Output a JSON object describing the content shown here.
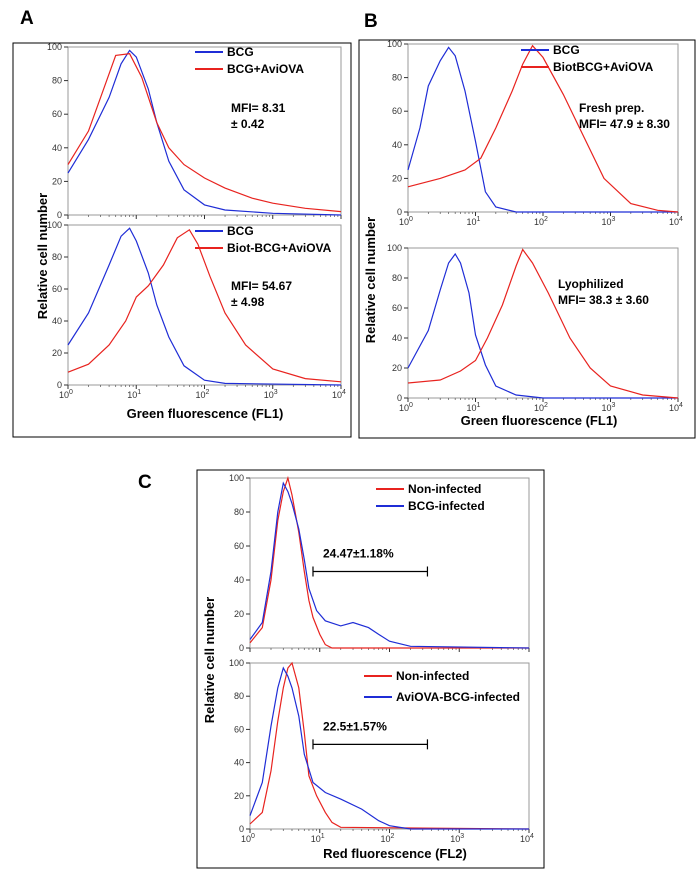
{
  "colors": {
    "blue": "#1f2dd6",
    "red": "#e8231f",
    "frame": "#000000"
  },
  "panels": [
    {
      "letter": "A",
      "xlabel": "Green fluorescence (FL1)",
      "ylabel": "Relative cell number"
    },
    {
      "letter": "B",
      "xlabel": "Green fluorescence (FL1)",
      "ylabel": "Relative cell number"
    },
    {
      "letter": "C",
      "xlabel": "Red fluorescence (FL2)",
      "ylabel": "Relative cell number"
    }
  ],
  "chart_data": [
    {
      "type": "line",
      "panel": "A",
      "subplot": "top",
      "xscale": "log",
      "xlim": [
        1,
        10000
      ],
      "ylim": [
        0,
        100
      ],
      "x_ticks": [
        "10^0",
        "10^1",
        "10^2",
        "10^3",
        "10^4"
      ],
      "y_ticks": [
        0,
        20,
        40,
        60,
        80,
        100
      ],
      "annotation": [
        "MFI= 8.31",
        "± 0.42"
      ],
      "series": [
        {
          "name": "BCG",
          "color": "blue",
          "points": [
            [
              1,
              25
            ],
            [
              2,
              45
            ],
            [
              4,
              70
            ],
            [
              6,
              90
            ],
            [
              8,
              98
            ],
            [
              10,
              94
            ],
            [
              15,
              75
            ],
            [
              20,
              55
            ],
            [
              30,
              32
            ],
            [
              50,
              15
            ],
            [
              100,
              6
            ],
            [
              200,
              3
            ],
            [
              1000,
              1
            ],
            [
              10000,
              0
            ]
          ]
        },
        {
          "name": "BCG+AviOVA",
          "color": "red",
          "points": [
            [
              1,
              30
            ],
            [
              2,
              50
            ],
            [
              3,
              70
            ],
            [
              5,
              95
            ],
            [
              8,
              96
            ],
            [
              12,
              82
            ],
            [
              20,
              55
            ],
            [
              30,
              40
            ],
            [
              50,
              30
            ],
            [
              100,
              22
            ],
            [
              200,
              16
            ],
            [
              500,
              10
            ],
            [
              1000,
              7
            ],
            [
              3000,
              4
            ],
            [
              10000,
              2
            ]
          ]
        }
      ]
    },
    {
      "type": "line",
      "panel": "A",
      "subplot": "bottom",
      "xscale": "log",
      "xlim": [
        1,
        10000
      ],
      "ylim": [
        0,
        100
      ],
      "x_ticks": [
        "10^0",
        "10^1",
        "10^2",
        "10^3",
        "10^4"
      ],
      "y_ticks": [
        0,
        20,
        40,
        60,
        80,
        100
      ],
      "annotation": [
        "MFI= 54.67",
        "± 4.98"
      ],
      "series": [
        {
          "name": "BCG",
          "color": "blue",
          "points": [
            [
              1,
              25
            ],
            [
              2,
              45
            ],
            [
              4,
              75
            ],
            [
              6,
              93
            ],
            [
              8,
              98
            ],
            [
              10,
              90
            ],
            [
              15,
              70
            ],
            [
              20,
              50
            ],
            [
              30,
              30
            ],
            [
              50,
              12
            ],
            [
              100,
              3
            ],
            [
              200,
              1
            ],
            [
              10000,
              0
            ]
          ]
        },
        {
          "name": "Biot-BCG+AviOVA",
          "color": "red",
          "points": [
            [
              1,
              8
            ],
            [
              2,
              13
            ],
            [
              4,
              25
            ],
            [
              7,
              40
            ],
            [
              10,
              55
            ],
            [
              15,
              62
            ],
            [
              25,
              75
            ],
            [
              40,
              92
            ],
            [
              60,
              97
            ],
            [
              80,
              88
            ],
            [
              120,
              68
            ],
            [
              200,
              45
            ],
            [
              400,
              25
            ],
            [
              1000,
              10
            ],
            [
              3000,
              4
            ],
            [
              10000,
              2
            ]
          ]
        }
      ]
    },
    {
      "type": "line",
      "panel": "B",
      "subplot": "top",
      "xscale": "log",
      "xlim": [
        1,
        10000
      ],
      "ylim": [
        0,
        100
      ],
      "x_ticks": [
        "10^0",
        "10^1",
        "10^2",
        "10^3",
        "10^4"
      ],
      "y_ticks": [
        0,
        20,
        40,
        60,
        80,
        100
      ],
      "annotation": [
        "Fresh prep.",
        "MFI= 47.9 ± 8.30"
      ],
      "series": [
        {
          "name": "BCG",
          "color": "blue",
          "points": [
            [
              1,
              25
            ],
            [
              1.5,
              50
            ],
            [
              2,
              75
            ],
            [
              3,
              90
            ],
            [
              4,
              98
            ],
            [
              5,
              93
            ],
            [
              7,
              72
            ],
            [
              10,
              42
            ],
            [
              14,
              12
            ],
            [
              20,
              3
            ],
            [
              40,
              0
            ],
            [
              10000,
              0
            ]
          ]
        },
        {
          "name": "BiotBCG+AviOVA",
          "color": "red",
          "points": [
            [
              1,
              15
            ],
            [
              3,
              20
            ],
            [
              7,
              25
            ],
            [
              12,
              32
            ],
            [
              20,
              50
            ],
            [
              35,
              72
            ],
            [
              50,
              88
            ],
            [
              70,
              99
            ],
            [
              100,
              92
            ],
            [
              200,
              70
            ],
            [
              400,
              45
            ],
            [
              800,
              20
            ],
            [
              2000,
              5
            ],
            [
              5000,
              1
            ],
            [
              10000,
              0
            ]
          ]
        }
      ]
    },
    {
      "type": "line",
      "panel": "B",
      "subplot": "bottom",
      "xscale": "log",
      "xlim": [
        1,
        10000
      ],
      "ylim": [
        0,
        100
      ],
      "x_ticks": [
        "10^0",
        "10^1",
        "10^2",
        "10^3",
        "10^4"
      ],
      "y_ticks": [
        0,
        20,
        40,
        60,
        80,
        100
      ],
      "annotation": [
        "Lyophilized",
        "MFI= 38.3 ± 3.60"
      ],
      "series": [
        {
          "name": "BCG",
          "color": "blue",
          "points": [
            [
              1,
              20
            ],
            [
              2,
              45
            ],
            [
              3,
              72
            ],
            [
              4,
              90
            ],
            [
              5,
              96
            ],
            [
              6,
              90
            ],
            [
              8,
              70
            ],
            [
              10,
              42
            ],
            [
              14,
              22
            ],
            [
              20,
              8
            ],
            [
              40,
              2
            ],
            [
              100,
              0
            ],
            [
              10000,
              0
            ]
          ]
        },
        {
          "name": "BiotBCG+AviOVA",
          "color": "red",
          "points": [
            [
              1,
              10
            ],
            [
              3,
              12
            ],
            [
              6,
              18
            ],
            [
              10,
              25
            ],
            [
              15,
              40
            ],
            [
              25,
              62
            ],
            [
              40,
              88
            ],
            [
              50,
              99
            ],
            [
              70,
              90
            ],
            [
              120,
              70
            ],
            [
              250,
              40
            ],
            [
              500,
              20
            ],
            [
              1000,
              8
            ],
            [
              3000,
              2
            ],
            [
              10000,
              0
            ]
          ]
        }
      ]
    },
    {
      "type": "line",
      "panel": "C",
      "subplot": "top",
      "xscale": "log",
      "xlim": [
        1,
        10000
      ],
      "ylim": [
        0,
        100
      ],
      "x_ticks": [
        "10^0",
        "10^1",
        "10^2",
        "10^3",
        "10^4"
      ],
      "y_ticks": [
        0,
        20,
        40,
        60,
        80,
        100
      ],
      "gate": {
        "from": 8,
        "to": 350,
        "label": "24.47±1.18%"
      },
      "series": [
        {
          "name": "Non-infected",
          "color": "red",
          "points": [
            [
              1,
              3
            ],
            [
              1.5,
              12
            ],
            [
              2,
              40
            ],
            [
              2.5,
              75
            ],
            [
              3,
              92
            ],
            [
              3.5,
              100
            ],
            [
              4,
              90
            ],
            [
              5,
              68
            ],
            [
              6,
              45
            ],
            [
              7,
              28
            ],
            [
              8,
              18
            ],
            [
              10,
              8
            ],
            [
              12,
              2
            ],
            [
              15,
              0
            ],
            [
              10000,
              0
            ]
          ]
        },
        {
          "name": "BCG-infected",
          "color": "blue",
          "points": [
            [
              1,
              5
            ],
            [
              1.5,
              15
            ],
            [
              2,
              45
            ],
            [
              2.5,
              80
            ],
            [
              3,
              97
            ],
            [
              3.5,
              92
            ],
            [
              4,
              85
            ],
            [
              5,
              70
            ],
            [
              6,
              52
            ],
            [
              7,
              35
            ],
            [
              9,
              22
            ],
            [
              12,
              16
            ],
            [
              20,
              13
            ],
            [
              30,
              15
            ],
            [
              50,
              12
            ],
            [
              70,
              8
            ],
            [
              100,
              4
            ],
            [
              200,
              1
            ],
            [
              10000,
              0
            ]
          ]
        }
      ]
    },
    {
      "type": "line",
      "panel": "C",
      "subplot": "bottom",
      "xscale": "log",
      "xlim": [
        1,
        10000
      ],
      "ylim": [
        0,
        100
      ],
      "x_ticks": [
        "10^0",
        "10^1",
        "10^2",
        "10^3",
        "10^4"
      ],
      "y_ticks": [
        0,
        20,
        40,
        60,
        80,
        100
      ],
      "gate": {
        "from": 8,
        "to": 350,
        "label": "22.5±1.57%"
      },
      "series": [
        {
          "name": "Non-infected",
          "color": "red",
          "points": [
            [
              1,
              3
            ],
            [
              1.5,
              10
            ],
            [
              2,
              35
            ],
            [
              2.5,
              65
            ],
            [
              3,
              85
            ],
            [
              3.5,
              97
            ],
            [
              4,
              100
            ],
            [
              5,
              85
            ],
            [
              6,
              58
            ],
            [
              7,
              32
            ],
            [
              9,
              20
            ],
            [
              12,
              10
            ],
            [
              15,
              4
            ],
            [
              20,
              1
            ],
            [
              10000,
              0
            ]
          ]
        },
        {
          "name": "AviOVA-BCG-infected",
          "color": "blue",
          "points": [
            [
              1,
              8
            ],
            [
              1.5,
              28
            ],
            [
              2,
              62
            ],
            [
              2.5,
              85
            ],
            [
              3,
              97
            ],
            [
              3.5,
              92
            ],
            [
              4,
              85
            ],
            [
              5,
              68
            ],
            [
              6,
              45
            ],
            [
              8,
              28
            ],
            [
              12,
              22
            ],
            [
              20,
              18
            ],
            [
              40,
              12
            ],
            [
              70,
              5
            ],
            [
              100,
              2
            ],
            [
              200,
              0
            ],
            [
              10000,
              0
            ]
          ]
        }
      ]
    }
  ]
}
